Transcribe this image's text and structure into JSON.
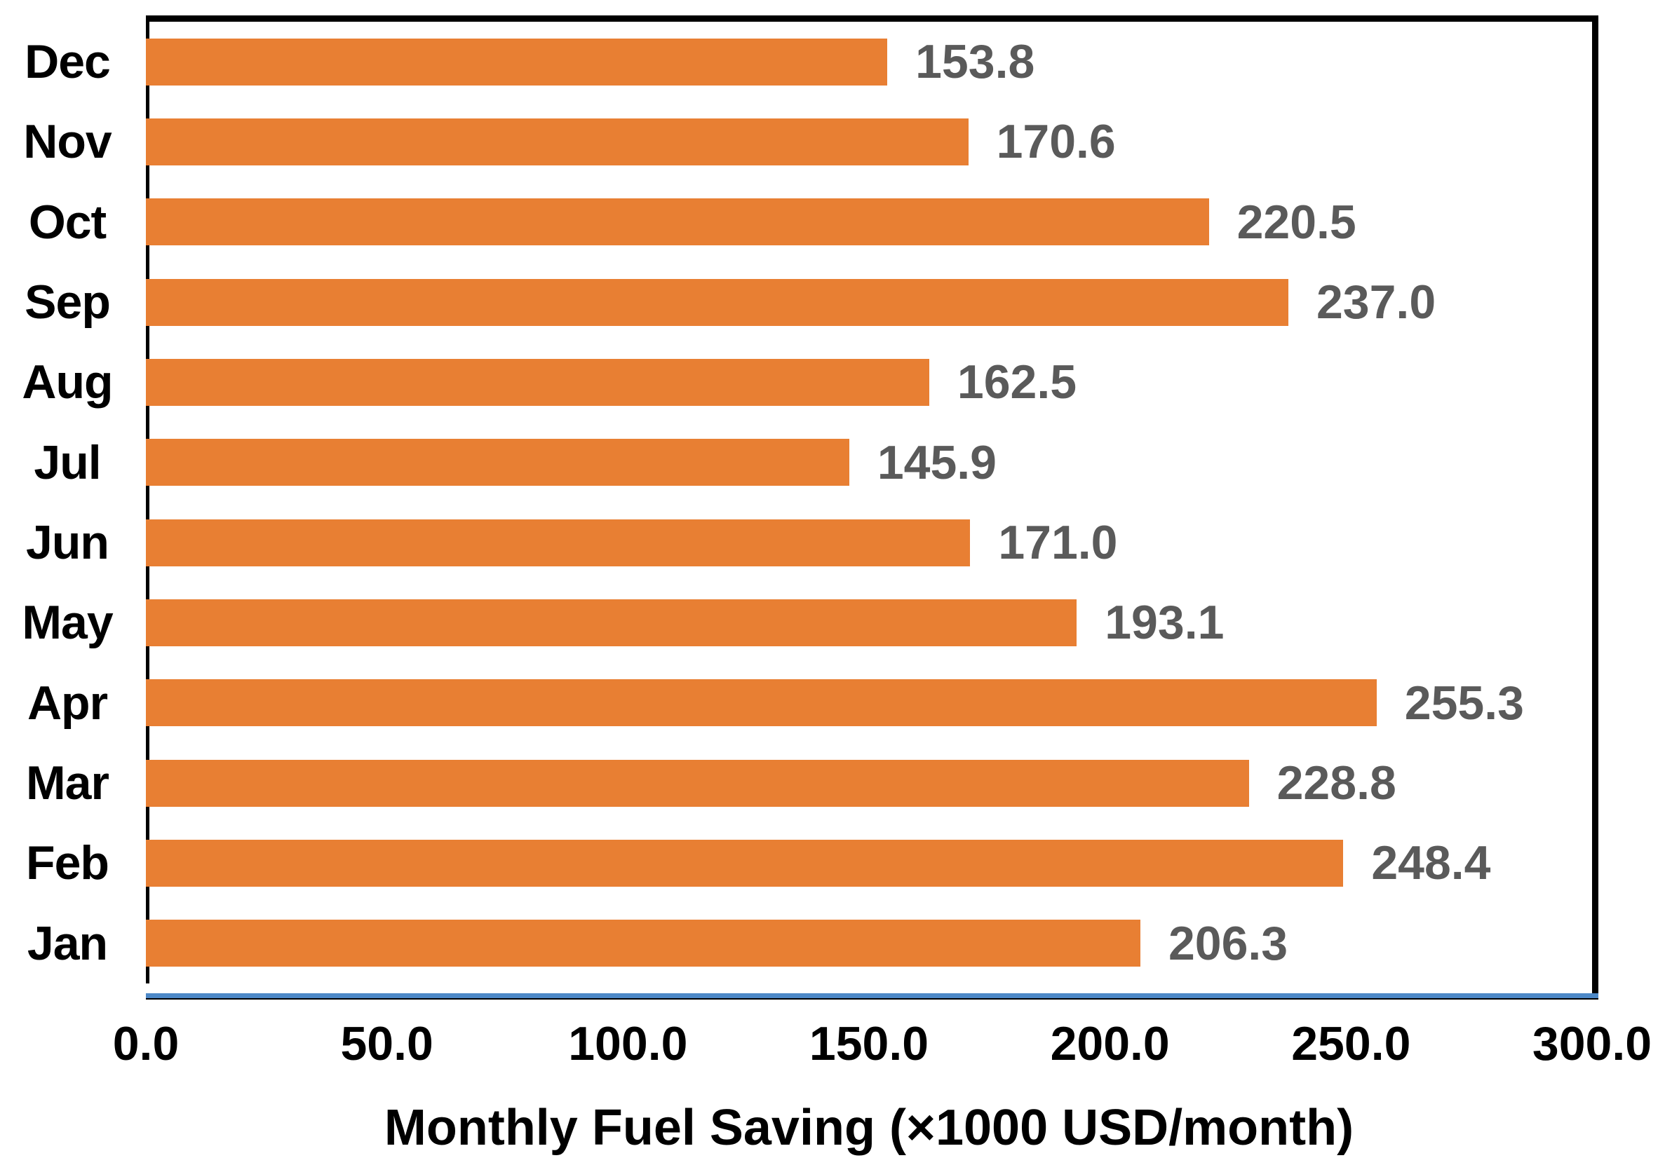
{
  "chart_data": {
    "type": "bar",
    "orientation": "horizontal",
    "title": "",
    "xlabel": "Monthly Fuel Saving (×1000 USD/month)",
    "ylabel": "",
    "categories": [
      "Dec",
      "Nov",
      "Oct",
      "Sep",
      "Aug",
      "Jul",
      "Jun",
      "May",
      "Apr",
      "Mar",
      "Feb",
      "Jan"
    ],
    "values": [
      153.8,
      170.6,
      220.5,
      237.0,
      162.5,
      145.9,
      171.0,
      193.1,
      255.3,
      228.8,
      248.4,
      206.3
    ],
    "value_labels": [
      "153.8",
      "170.6",
      "220.5",
      "237.0",
      "162.5",
      "145.9",
      "171.0",
      "193.1",
      "255.3",
      "228.8",
      "248.4",
      "206.3"
    ],
    "x_ticks": [
      "0.0",
      "50.0",
      "100.0",
      "150.0",
      "200.0",
      "250.0",
      "300.0"
    ],
    "x_tick_values": [
      0,
      50,
      100,
      150,
      200,
      250,
      300
    ],
    "xlim": [
      0,
      300
    ],
    "grid": false,
    "legend_position": "none",
    "colors": {
      "bar": "#E87F33",
      "value_label": "#5A5A5A",
      "axis_text": "#000000",
      "plot_border": "#000000",
      "baseline_accent": "#4C88C7",
      "background": "#FFFFFF"
    }
  }
}
